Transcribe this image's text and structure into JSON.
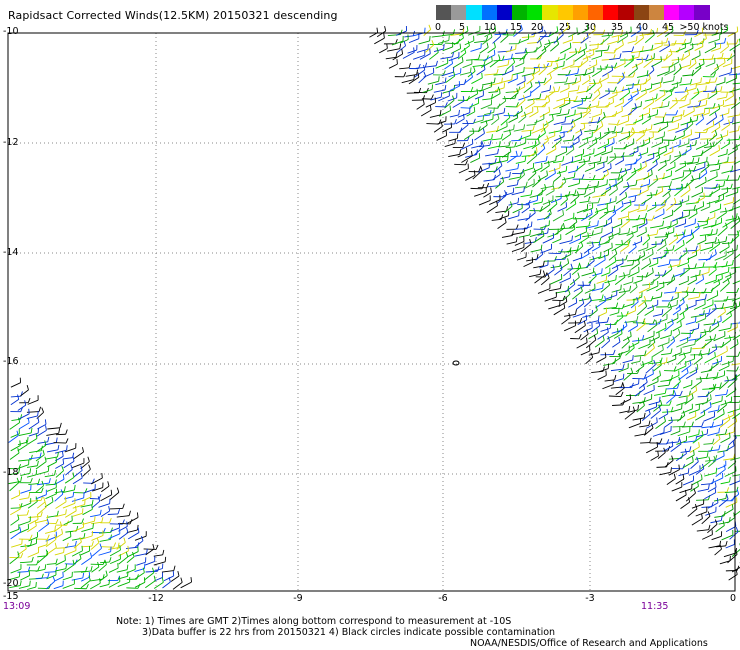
{
  "title": "Rapidsact Corrected Winds(12.5KM) 20150321 descending",
  "colorbar": {
    "labels": [
      "0",
      "5",
      "10",
      "15",
      "20",
      "25",
      "30",
      "35",
      "40",
      "45",
      ">50 knots"
    ],
    "colors": [
      "#555555",
      "#9a9a9a",
      "#00e0ff",
      "#0070ff",
      "#0000c8",
      "#00b400",
      "#00e100",
      "#e6e600",
      "#ffc800",
      "#ffa000",
      "#ff6400",
      "#ff0000",
      "#b40000",
      "#8b4513",
      "#cd853f",
      "#ff00ff",
      "#b400ff",
      "#7800c8"
    ]
  },
  "map": {
    "y_axis_labels": [
      "-10",
      "-12",
      "-14",
      "-16",
      "-18",
      "-20"
    ],
    "x_axis_labels": [
      "-12",
      "-9",
      "-6",
      "-3",
      "0"
    ],
    "corner_label": "-15",
    "left_time": "13:09",
    "right_time": "11:35",
    "gridline_style": "dotted"
  },
  "notes": {
    "line1": "Note: 1) Times are GMT 2)Times along bottom correspond to measurement at -10S",
    "line2": "3)Data buffer is 22 hrs from 20150321 4) Black circles indicate possible contamination",
    "credit": "NOAA/NESDIS/Office of Research and Applications"
  }
}
